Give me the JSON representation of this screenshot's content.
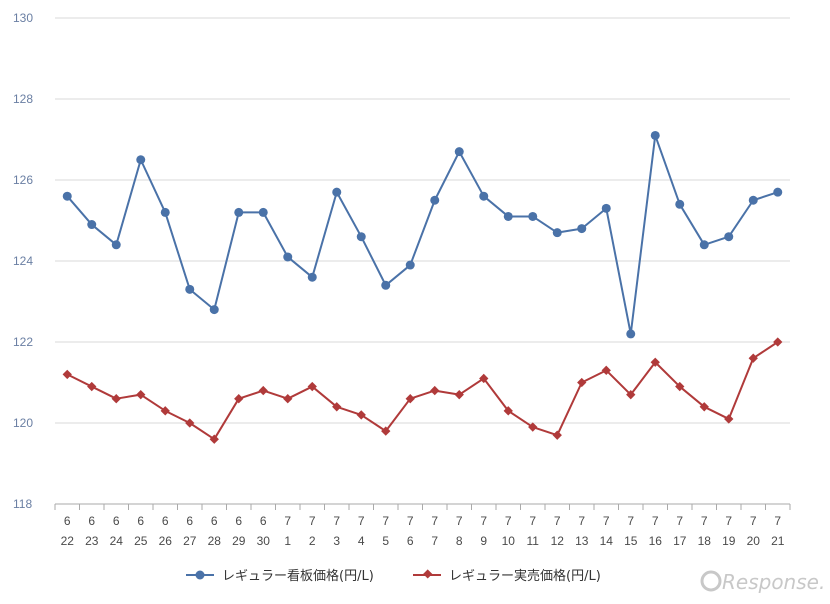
{
  "chart_data": {
    "type": "line",
    "categories": [
      [
        "6",
        "22"
      ],
      [
        "6",
        "23"
      ],
      [
        "6",
        "24"
      ],
      [
        "6",
        "25"
      ],
      [
        "6",
        "26"
      ],
      [
        "6",
        "27"
      ],
      [
        "6",
        "28"
      ],
      [
        "6",
        "29"
      ],
      [
        "6",
        "30"
      ],
      [
        "7",
        "1"
      ],
      [
        "7",
        "2"
      ],
      [
        "7",
        "3"
      ],
      [
        "7",
        "4"
      ],
      [
        "7",
        "5"
      ],
      [
        "7",
        "6"
      ],
      [
        "7",
        "7"
      ],
      [
        "7",
        "8"
      ],
      [
        "7",
        "9"
      ],
      [
        "7",
        "10"
      ],
      [
        "7",
        "11"
      ],
      [
        "7",
        "12"
      ],
      [
        "7",
        "13"
      ],
      [
        "7",
        "14"
      ],
      [
        "7",
        "15"
      ],
      [
        "7",
        "16"
      ],
      [
        "7",
        "17"
      ],
      [
        "7",
        "18"
      ],
      [
        "7",
        "19"
      ],
      [
        "7",
        "20"
      ],
      [
        "7",
        "21"
      ]
    ],
    "series": [
      {
        "name": "レギュラー看板価格(円/L)",
        "color": "#4a72a8",
        "marker": "circle",
        "values": [
          125.6,
          124.9,
          124.4,
          126.5,
          125.2,
          123.3,
          122.8,
          125.2,
          125.2,
          124.1,
          123.6,
          125.7,
          124.6,
          123.4,
          123.9,
          125.5,
          126.7,
          125.6,
          125.1,
          125.1,
          124.7,
          124.8,
          125.3,
          122.2,
          127.1,
          125.4,
          124.4,
          124.6,
          125.5,
          125.7
        ]
      },
      {
        "name": "レギュラー実売価格(円/L)",
        "color": "#b03a3a",
        "marker": "diamond",
        "values": [
          121.2,
          120.9,
          120.6,
          120.7,
          120.3,
          120.0,
          119.6,
          120.6,
          120.8,
          120.6,
          120.9,
          120.4,
          120.2,
          119.8,
          120.6,
          120.8,
          120.7,
          121.1,
          120.3,
          119.9,
          119.7,
          121.0,
          121.3,
          120.7,
          121.5,
          120.9,
          120.4,
          120.1,
          121.6,
          122.0
        ]
      }
    ],
    "yticks": [
      "118",
      "120",
      "122",
      "124",
      "126",
      "128",
      "130"
    ],
    "ylim": [
      118,
      130
    ],
    "grid": true,
    "legend_position": "bottom"
  },
  "watermark": "Response."
}
